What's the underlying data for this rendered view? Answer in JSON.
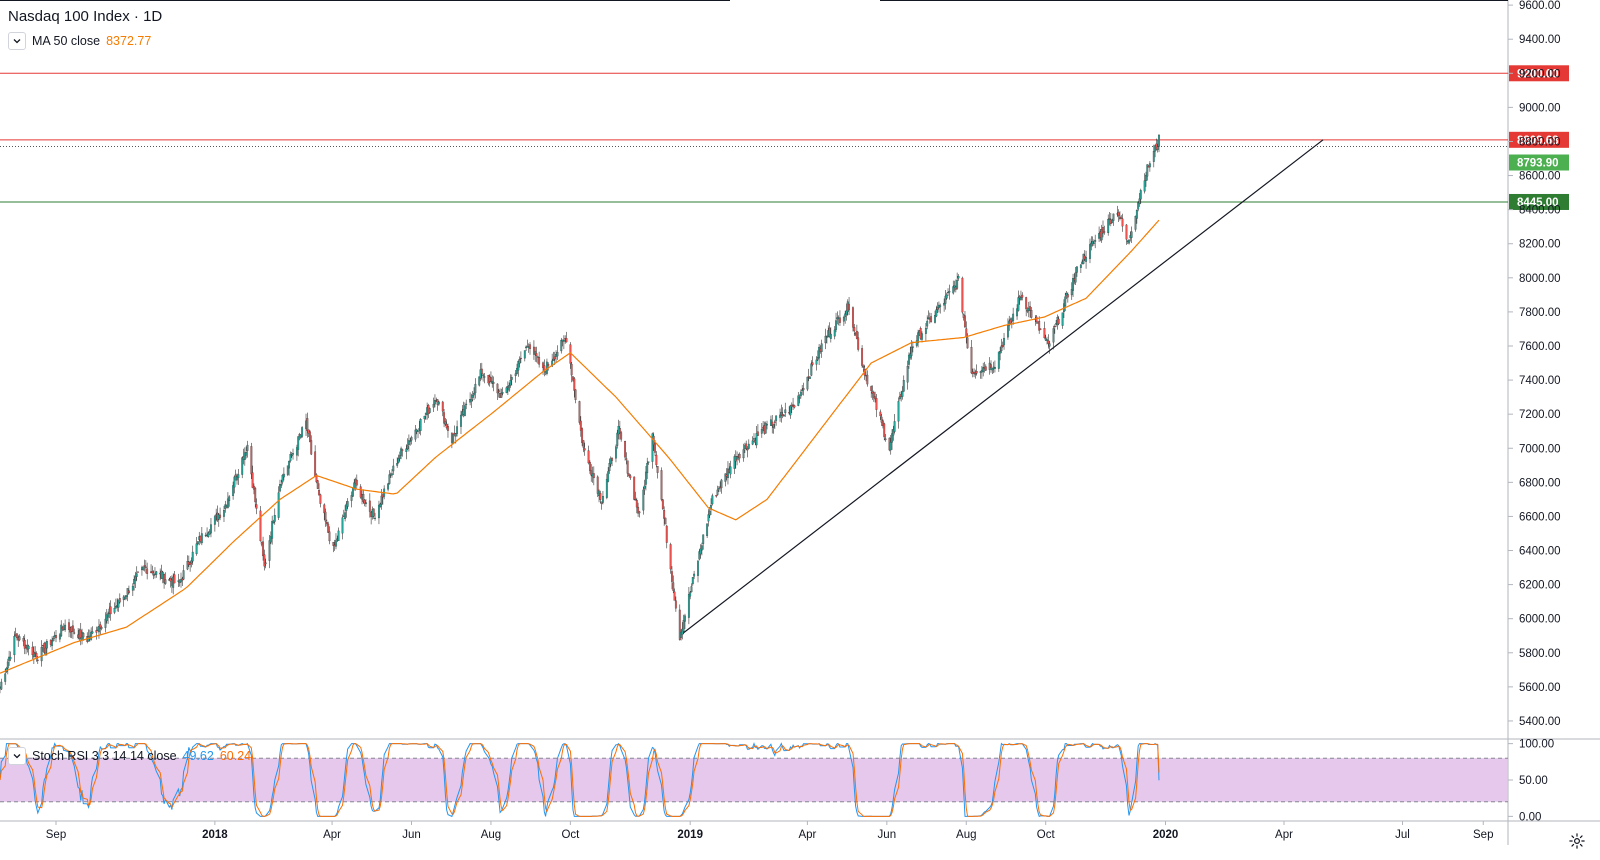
{
  "header": {
    "symbol_title": "Nasdaq 100 Index · 1D",
    "ma_label": "MA 50 close",
    "ma_value": "8372.77",
    "stoch_label": "Stoch RSI 3 3 14 14 close",
    "stoch_k": "49.62",
    "stoch_d": "60.24"
  },
  "icons": {
    "collapse": "chevron-down-icon",
    "settings": "gear-icon"
  },
  "colors": {
    "up": "#26a69a",
    "down": "#ef5350",
    "ma": "#f57c00",
    "resistance": "#e53935",
    "support": "#2e7d32",
    "last_price": "#4caf50",
    "stoch_k": "#2196f3",
    "stoch_d": "#ff6d00",
    "stoch_band": "#e1bee7"
  },
  "chart_data": [
    {
      "type": "line",
      "title": "Nasdaq 100 Index · 1D",
      "time_axis_labels": [
        "Sep",
        "2018",
        "Apr",
        "Jun",
        "Aug",
        "Oct",
        "2019",
        "Apr",
        "Jun",
        "Aug",
        "Oct",
        "2020",
        "Apr",
        "Jul",
        "Sep"
      ],
      "y_axis_labels": [
        "9600.00",
        "9400.00",
        "9200.00",
        "9000.00",
        "8800.00",
        "8600.00",
        "8400.00",
        "8200.00",
        "8000.00",
        "7800.00",
        "7600.00",
        "7400.00",
        "7200.00",
        "7000.00",
        "6800.00",
        "6600.00",
        "6400.00",
        "6200.00",
        "6000.00",
        "5800.00",
        "5600.00",
        "5400.00"
      ],
      "ylim": [
        5300,
        9630
      ],
      "x_range": [
        "2017-07-20",
        "2020-09-20"
      ],
      "series": [
        {
          "name": "Nasdaq 100 Index",
          "kind": "price",
          "points": [
            [
              "2017-07-20",
              5600
            ],
            [
              "2017-08-01",
              5900
            ],
            [
              "2017-08-18",
              5780
            ],
            [
              "2017-09-08",
              5960
            ],
            [
              "2017-09-25",
              5880
            ],
            [
              "2017-10-20",
              6100
            ],
            [
              "2017-11-08",
              6300
            ],
            [
              "2017-12-04",
              6200
            ],
            [
              "2017-12-20",
              6460
            ],
            [
              "2018-01-08",
              6650
            ],
            [
              "2018-01-26",
              7020
            ],
            [
              "2018-02-08",
              6300
            ],
            [
              "2018-02-20",
              6800
            ],
            [
              "2018-03-12",
              7150
            ],
            [
              "2018-03-22",
              6700
            ],
            [
              "2018-04-02",
              6400
            ],
            [
              "2018-04-18",
              6800
            ],
            [
              "2018-05-03",
              6600
            ],
            [
              "2018-05-22",
              6950
            ],
            [
              "2018-06-20",
              7300
            ],
            [
              "2018-07-02",
              7050
            ],
            [
              "2018-07-25",
              7450
            ],
            [
              "2018-08-10",
              7300
            ],
            [
              "2018-08-30",
              7620
            ],
            [
              "2018-09-10",
              7450
            ],
            [
              "2018-09-28",
              7650
            ],
            [
              "2018-10-11",
              7000
            ],
            [
              "2018-10-25",
              6700
            ],
            [
              "2018-11-07",
              7100
            ],
            [
              "2018-11-23",
              6600
            ],
            [
              "2018-12-03",
              7100
            ],
            [
              "2018-12-24",
              5900
            ],
            [
              "2019-01-18",
              6700
            ],
            [
              "2019-02-05",
              6950
            ],
            [
              "2019-02-25",
              7100
            ],
            [
              "2019-03-22",
              7250
            ],
            [
              "2019-04-15",
              7650
            ],
            [
              "2019-05-03",
              7840
            ],
            [
              "2019-05-13",
              7500
            ],
            [
              "2019-06-03",
              7000
            ],
            [
              "2019-06-20",
              7600
            ],
            [
              "2019-07-26",
              7980
            ],
            [
              "2019-08-05",
              7450
            ],
            [
              "2019-08-23",
              7500
            ],
            [
              "2019-09-12",
              7900
            ],
            [
              "2019-10-03",
              7600
            ],
            [
              "2019-10-28",
              8100
            ],
            [
              "2019-11-25",
              8400
            ],
            [
              "2019-12-03",
              8200
            ],
            [
              "2019-12-16",
              8600
            ],
            [
              "2019-12-27",
              8809.68
            ]
          ],
          "last_value": 8793.9
        },
        {
          "name": "MA 50 close",
          "kind": "ma",
          "points": [
            [
              "2017-07-20",
              5680
            ],
            [
              "2017-09-15",
              5860
            ],
            [
              "2017-10-25",
              5950
            ],
            [
              "2017-12-10",
              6180
            ],
            [
              "2018-01-15",
              6450
            ],
            [
              "2018-02-20",
              6700
            ],
            [
              "2018-03-20",
              6840
            ],
            [
              "2018-04-20",
              6760
            ],
            [
              "2018-05-20",
              6730
            ],
            [
              "2018-06-20",
              6950
            ],
            [
              "2018-08-01",
              7200
            ],
            [
              "2018-09-10",
              7450
            ],
            [
              "2018-10-01",
              7560
            ],
            [
              "2018-11-05",
              7300
            ],
            [
              "2018-12-15",
              6950
            ],
            [
              "2019-01-15",
              6650
            ],
            [
              "2019-02-05",
              6580
            ],
            [
              "2019-03-01",
              6700
            ],
            [
              "2019-04-15",
              7150
            ],
            [
              "2019-05-20",
              7500
            ],
            [
              "2019-06-20",
              7620
            ],
            [
              "2019-07-30",
              7650
            ],
            [
              "2019-08-30",
              7720
            ],
            [
              "2019-09-30",
              7770
            ],
            [
              "2019-11-01",
              7880
            ],
            [
              "2019-12-05",
              8150
            ],
            [
              "2019-12-31",
              8372.77
            ]
          ]
        }
      ],
      "horizontal_lines": [
        {
          "value": 9200.0,
          "label": "9200.00",
          "color": "#e53935"
        },
        {
          "value": 8809.68,
          "label": "8809.68",
          "color": "#e53935"
        },
        {
          "value": 8445.0,
          "label": "8445.00",
          "color": "#2e7d32"
        }
      ],
      "price_label": {
        "value": 8793.9,
        "label": "8793.90"
      },
      "trendline": {
        "from": [
          "2018-12-24",
          5900
        ],
        "to": [
          "2020-05-01",
          8809.68
        ]
      }
    },
    {
      "type": "line",
      "title": "Stoch RSI 3 3 14 14 close",
      "ylim": [
        -5,
        105
      ],
      "y_axis_labels": [
        "100.00",
        "50.00",
        "0.00"
      ],
      "bands": [
        20,
        80
      ],
      "series": [
        {
          "name": "K",
          "last_value": 49.62
        },
        {
          "name": "D",
          "last_value": 60.24
        }
      ]
    }
  ]
}
